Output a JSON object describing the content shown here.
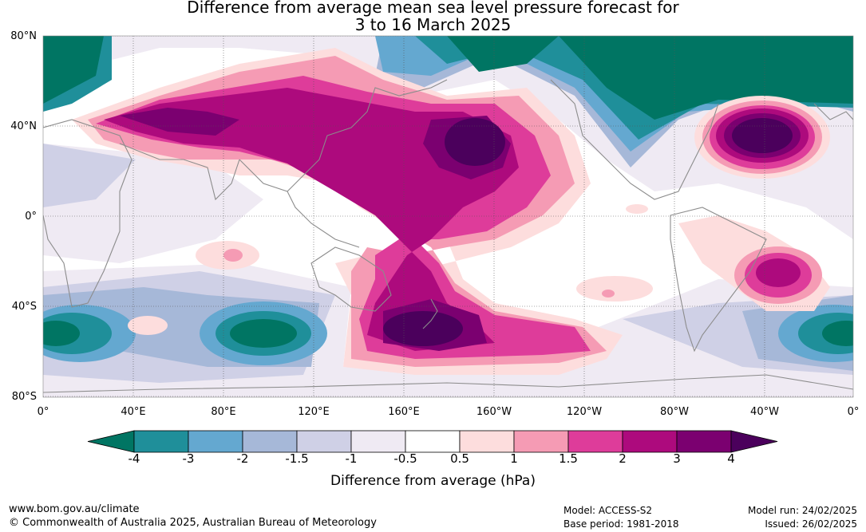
{
  "title_line1": "Difference from average mean sea level pressure forecast for",
  "title_line2": "3 to 16 March 2025",
  "map": {
    "lat_labels": [
      "80°N",
      "40°N",
      "0°",
      "40°S",
      "80°S"
    ],
    "lon_labels": [
      "0°",
      "40°E",
      "80°E",
      "120°E",
      "160°E",
      "160°W",
      "120°W",
      "80°W",
      "40°W",
      "0°"
    ],
    "land_color": "#8c8c8c",
    "grid": "dotted"
  },
  "legend": {
    "title": "Difference from average (hPa)",
    "ticks": [
      "-4",
      "-3",
      "-2",
      "-1.5",
      "-1",
      "-0.5",
      "0.5",
      "1",
      "1.5",
      "2",
      "3",
      "4"
    ],
    "colors": [
      "#007563",
      "#1f8f9a",
      "#64a8d0",
      "#a6b8d8",
      "#cfd0e6",
      "#efeaf3",
      "#ffffff",
      "#fddddd",
      "#f59bb4",
      "#de3c9a",
      "#ad0a7d",
      "#7b0070",
      "#4b005c"
    ],
    "extend": "both"
  },
  "footer": {
    "website": "www.bom.gov.au/climate",
    "copyright": "© Commonwealth of Australia 2025, Australian Bureau of Meteorology",
    "model": "Model: ACCESS-S2",
    "base_period": "Base period: 1981-2018",
    "model_run": "Model run: 24/02/2025",
    "issued": "Issued: 26/02/2025"
  }
}
